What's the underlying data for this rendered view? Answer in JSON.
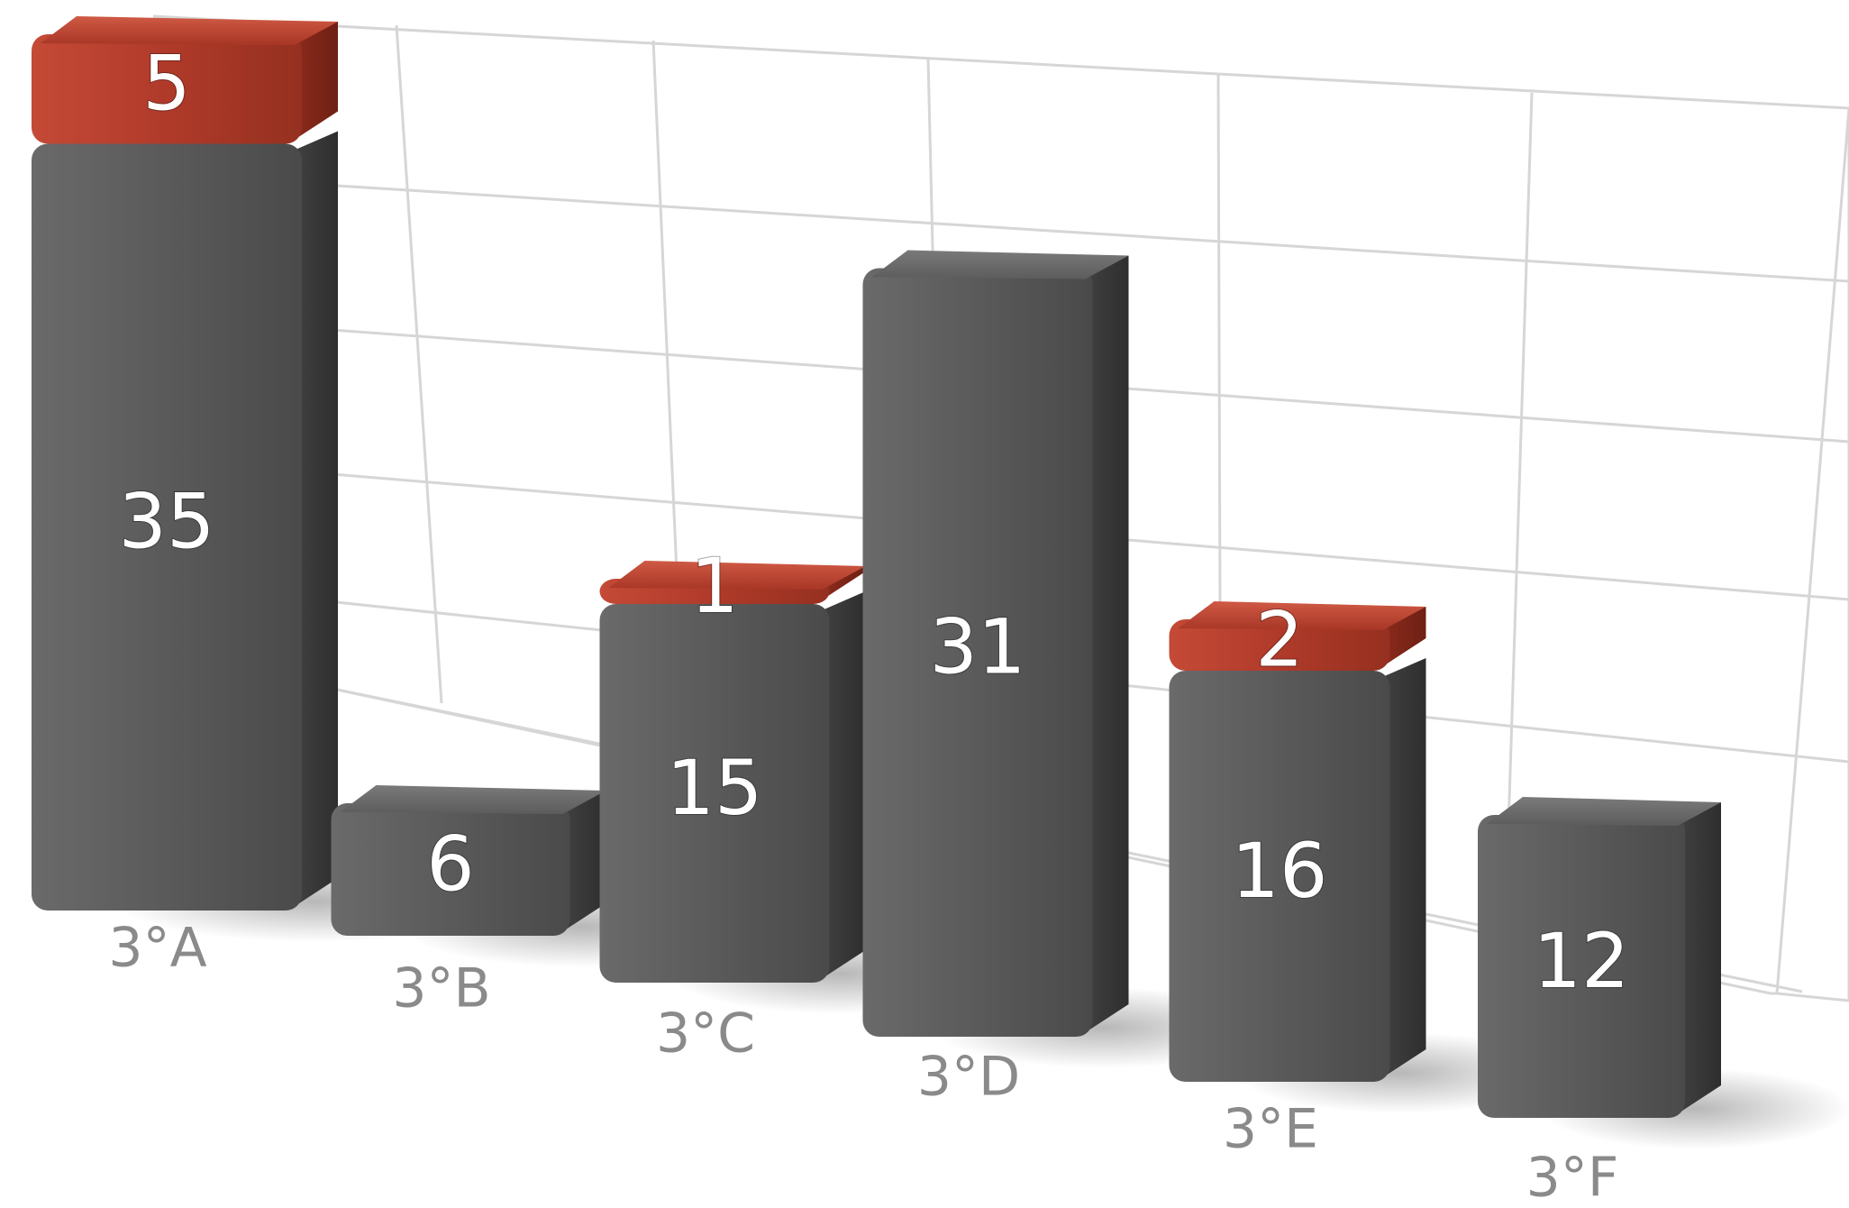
{
  "chart_data": {
    "type": "bar",
    "stacked": true,
    "categories": [
      "3°A",
      "3°B",
      "3°C",
      "3°D",
      "3°E",
      "3°F"
    ],
    "series": [
      {
        "values": [
          35,
          6,
          15,
          31,
          16,
          12
        ],
        "color": "#575757"
      },
      {
        "values": [
          5,
          0,
          1,
          0,
          2,
          0
        ],
        "color": "#b03a2a"
      }
    ],
    "title": "",
    "xlabel": "",
    "ylabel": "",
    "ylim": [
      0,
      40
    ],
    "grid": true,
    "legend": "none",
    "style": "3d-perspective"
  },
  "colors": {
    "background": "#ffffff",
    "grid": "#d6d6d6",
    "bar_gray": "#575757",
    "bar_red": "#b03a2a",
    "category_text": "#8a8a8a",
    "value_text": "#ffffff"
  }
}
